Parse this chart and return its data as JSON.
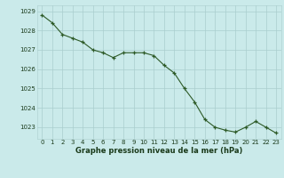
{
  "x": [
    0,
    1,
    2,
    3,
    4,
    5,
    6,
    7,
    8,
    9,
    10,
    11,
    12,
    13,
    14,
    15,
    16,
    17,
    18,
    19,
    20,
    21,
    22,
    23
  ],
  "y": [
    1028.8,
    1028.4,
    1027.8,
    1027.6,
    1027.4,
    1027.0,
    1026.85,
    1026.6,
    1026.85,
    1026.85,
    1026.85,
    1026.7,
    1026.2,
    1025.8,
    1025.0,
    1024.3,
    1023.4,
    1023.0,
    1022.85,
    1022.75,
    1023.0,
    1023.3,
    1023.0,
    1022.7
  ],
  "xlim": [
    -0.5,
    23.5
  ],
  "ylim": [
    1022.4,
    1029.3
  ],
  "yticks": [
    1023,
    1024,
    1025,
    1026,
    1027,
    1028,
    1029
  ],
  "xticks": [
    0,
    1,
    2,
    3,
    4,
    5,
    6,
    7,
    8,
    9,
    10,
    11,
    12,
    13,
    14,
    15,
    16,
    17,
    18,
    19,
    20,
    21,
    22,
    23
  ],
  "line_color": "#2d5a27",
  "marker_color": "#2d5a27",
  "bg_color": "#caeaea",
  "grid_color": "#aacece",
  "xlabel": "Graphe pression niveau de la mer (hPa)",
  "xlabel_color": "#1a3a1a",
  "tick_color": "#1a3a1a"
}
